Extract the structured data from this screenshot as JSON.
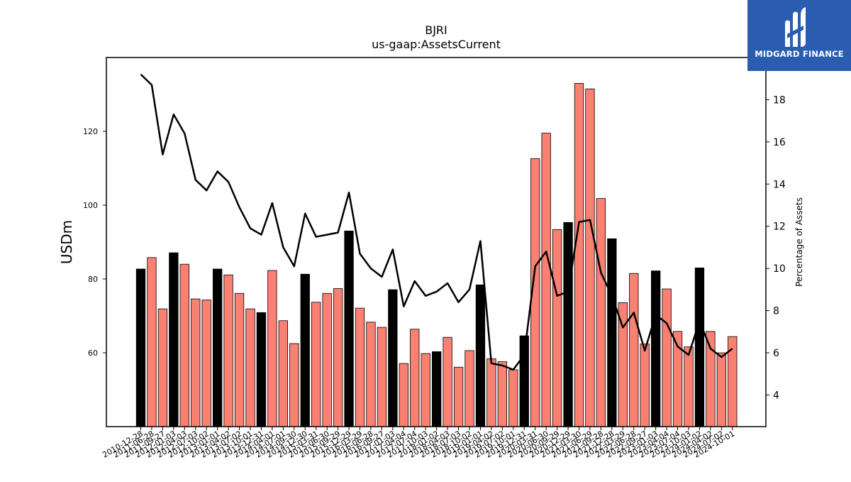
{
  "logo": {
    "text": "MIDGARD FINANCE",
    "bg_color": "#2a5db0"
  },
  "chart_data": {
    "type": "bar+line",
    "title": "BJRI",
    "subtitle": "us-gaap:AssetsCurrent",
    "ylabel_left": "USDm",
    "ylabel_right": "Percentage of Assets",
    "ylim_left": [
      40,
      140
    ],
    "ylim_right": [
      2.5,
      20
    ],
    "yticks_left": [
      60,
      80,
      100,
      120
    ],
    "yticks_right": [
      4,
      6,
      8,
      10,
      12,
      14,
      16,
      18
    ],
    "bar_color_default": "#fa8072",
    "bar_color_highlight": "#000000",
    "line_color": "#000000",
    "grid": false,
    "categories": [
      "2010-12-28",
      "2011-06-28",
      "2011-09-27",
      "2012-01-03",
      "2012-04-03",
      "2012-07-03",
      "2012-10-02",
      "2013-01-01",
      "2013-04-02",
      "2013-07-02",
      "2013-10-01",
      "2013-12-31",
      "2014-04-01",
      "2014-07-01",
      "2014-09-30",
      "2014-12-30",
      "2015-03-31",
      "2015-06-30",
      "2015-09-29",
      "2015-12-29",
      "2016-03-29",
      "2016-06-28",
      "2016-09-27",
      "2017-01-03",
      "2017-04-04",
      "2017-07-04",
      "2017-10-03",
      "2018-01-02",
      "2018-04-03",
      "2018-07-03",
      "2018-10-02",
      "2019-01-01",
      "2019-04-02",
      "2019-07-02",
      "2019-10-01",
      "2019-12-31",
      "2020-03-31",
      "2020-06-30",
      "2020-09-29",
      "2020-12-29",
      "2021-03-30",
      "2021-06-29",
      "2021-09-28",
      "2021-12-28",
      "2022-03-29",
      "2022-06-28",
      "2022-09-27",
      "2023-01-03",
      "2023-04-04",
      "2023-07-04",
      "2023-10-03",
      "2024-01-02",
      "2024-04-02",
      "2024-07-02",
      "2024-10-01"
    ],
    "tick_labels": [
      "2010-12-28",
      "2011-06-28",
      "2011-09-27",
      "2012-01-03",
      "2012-04-03",
      "2012-07-03",
      "2012-10-02",
      "2013-01-01",
      "2013-04-02",
      "2013-07-02",
      "2013-10-01",
      "2013-12-31",
      "2014-04-01",
      "2014-07-01",
      "2014-09-30",
      "2014-12-30",
      "2015-03-31",
      "2015-06-30",
      "2015-09-29",
      "2015-12-29",
      "2016-03-29",
      "2016-06-28",
      "2016-09-27",
      "2017-01-03",
      "2017-04-04",
      "2017-07-04",
      "2017-10-03",
      "2018-01-02",
      "2018-04-03",
      "2018-07-03",
      "2018-10-02",
      "2019-01-01",
      "2019-04-02",
      "2019-07-02",
      "2019-10-01",
      "2019-12-31",
      "2020-03-31",
      "2020-06-30",
      "2020-09-29",
      "2020-12-29",
      "2021-03-30",
      "2021-06-29",
      "2021-09-28",
      "2021-12-28",
      "2022-03-29",
      "2022-06-28",
      "2022-09-27",
      "2023-01-03",
      "2023-04-04",
      "2023-07-04",
      "2023-10-03",
      "2024-01-02",
      "2024-04-02",
      "2024-07-02",
      "2024-10-01"
    ],
    "series": [
      {
        "type": "bar",
        "axis": "left",
        "values": [
          82.7,
          85.8,
          71.9,
          87.1,
          84.0,
          74.6,
          74.3,
          82.7,
          81.1,
          76.1,
          71.9,
          70.9,
          82.3,
          68.7,
          62.5,
          81.3,
          73.7,
          76.1,
          77.4,
          93.0,
          72.1,
          68.3,
          66.9,
          77.1,
          57.1,
          66.4,
          59.8,
          60.3,
          64.2,
          56.1,
          60.6,
          78.4,
          58.4,
          57.6,
          55.4,
          64.6,
          112.6,
          119.5,
          93.4,
          95.3,
          133.0,
          131.5,
          101.8,
          90.9,
          73.6,
          81.5,
          62.4,
          82.2,
          77.3,
          65.8,
          61.6,
          83.0,
          65.8,
          60.0,
          64.4
        ],
        "highlight": [
          true,
          false,
          false,
          true,
          false,
          false,
          false,
          true,
          false,
          false,
          false,
          true,
          false,
          false,
          false,
          true,
          false,
          false,
          false,
          true,
          false,
          false,
          false,
          true,
          false,
          false,
          false,
          true,
          false,
          false,
          false,
          true,
          false,
          false,
          false,
          true,
          false,
          false,
          false,
          true,
          false,
          false,
          false,
          true,
          false,
          false,
          false,
          true,
          false,
          false,
          false,
          true,
          false,
          false,
          false
        ]
      },
      {
        "type": "line",
        "axis": "right",
        "values": [
          19.2,
          18.7,
          15.4,
          17.3,
          16.4,
          14.2,
          13.7,
          14.6,
          14.1,
          12.9,
          11.9,
          11.6,
          13.1,
          11.0,
          10.1,
          12.6,
          11.5,
          11.6,
          11.7,
          13.6,
          10.7,
          10.0,
          9.6,
          10.9,
          8.2,
          9.4,
          8.7,
          8.9,
          9.3,
          8.4,
          9.0,
          11.3,
          5.5,
          5.4,
          5.2,
          5.9,
          10.1,
          10.8,
          8.7,
          8.9,
          12.2,
          12.3,
          9.8,
          8.7,
          7.2,
          7.9,
          6.1,
          7.8,
          7.4,
          6.3,
          5.9,
          7.5,
          6.2,
          5.8,
          6.2
        ]
      }
    ]
  }
}
